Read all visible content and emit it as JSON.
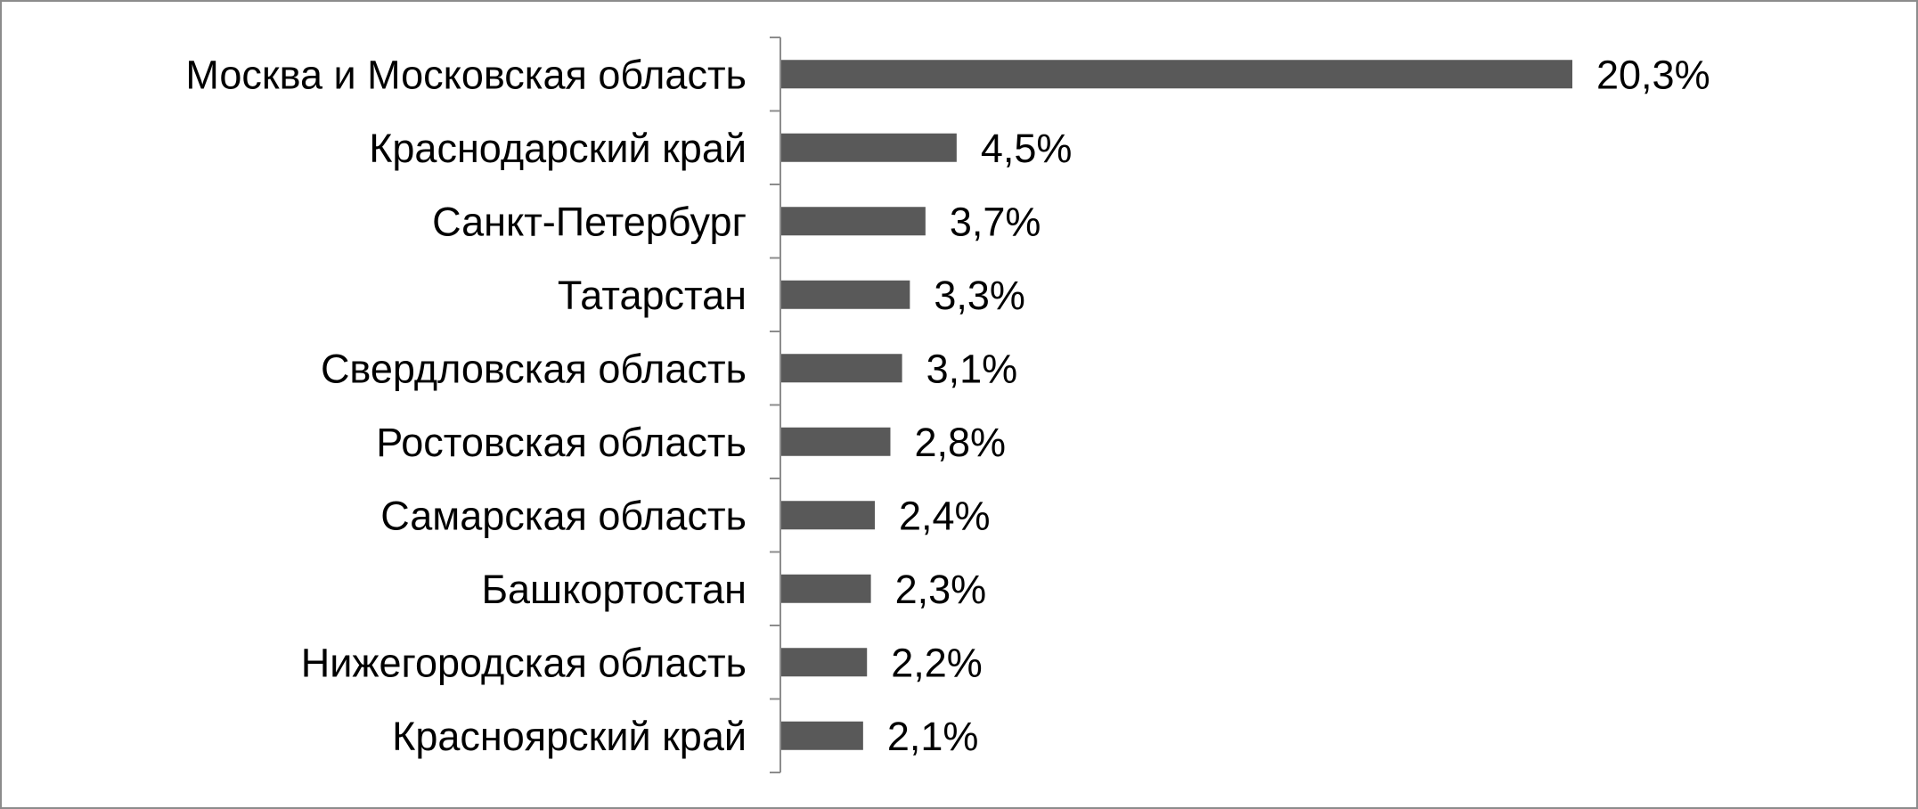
{
  "chart_data": {
    "type": "bar",
    "orientation": "horizontal",
    "categories": [
      "Москва и Московская область",
      "Краснодарский край",
      "Санкт-Петербург",
      "Татарстан",
      "Свердловская область",
      "Ростовская область",
      "Самарская область",
      "Башкортостан",
      "Нижегородская область",
      "Красноярский край"
    ],
    "values": [
      20.3,
      4.5,
      3.7,
      3.3,
      3.1,
      2.8,
      2.4,
      2.3,
      2.2,
      2.1
    ],
    "value_labels": [
      "20,3%",
      "4,5%",
      "3,7%",
      "3,3%",
      "3,1%",
      "2,8%",
      "2,4%",
      "2,3%",
      "2,2%",
      "2,1%"
    ],
    "title": "",
    "xlabel": "",
    "ylabel": "",
    "xlim": [
      0,
      20.3
    ],
    "grid": false,
    "legend": "none",
    "colors": {
      "bar": "#595959",
      "axis": "#8c8c8c",
      "frame": "#8c8c8c",
      "text": "#000000"
    }
  }
}
